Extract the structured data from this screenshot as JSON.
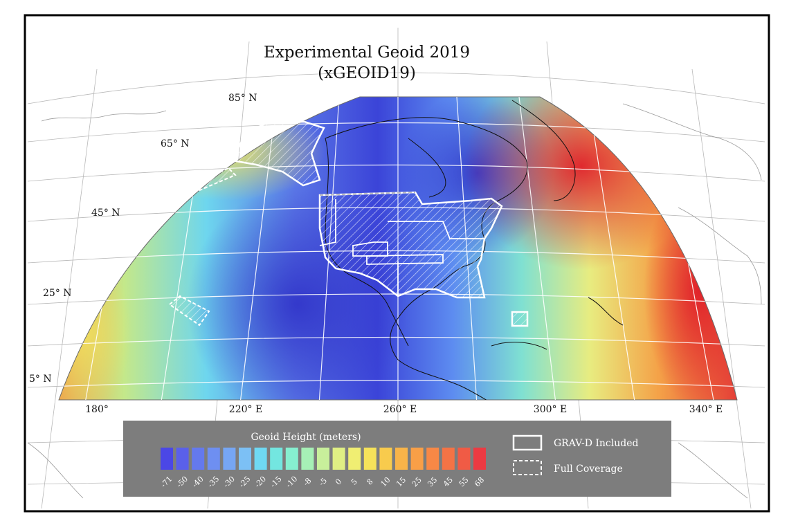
{
  "title": {
    "line1": "Experimental Geoid 2019",
    "line2": "(xGEOID19)"
  },
  "latitude_labels": [
    "85° N",
    "65° N",
    "45° N",
    "25° N",
    "5° N"
  ],
  "longitude_labels": [
    "180°",
    "220° E",
    "260° E",
    "300° E",
    "340° E"
  ],
  "legend": {
    "title": "Geoid Height (meters)",
    "values": [
      "-71",
      "-50",
      "-40",
      "-35",
      "-30",
      "-25",
      "-20",
      "-15",
      "-10",
      "-8",
      "-5",
      "0",
      "5",
      "8",
      "10",
      "15",
      "25",
      "35",
      "45",
      "55",
      "68"
    ],
    "colors": [
      "#4b47e6",
      "#5a60ea",
      "#6479ee",
      "#6e8ff1",
      "#76a6f4",
      "#7cc0f5",
      "#6fd9f3",
      "#73e6e0",
      "#86efd0",
      "#a6f0b6",
      "#c8ef9b",
      "#e0ef84",
      "#f0ee72",
      "#f6e25a",
      "#f8cb4d",
      "#f8b449",
      "#f89f47",
      "#f78846",
      "#f47345",
      "#f05b45",
      "#ec3a42"
    ],
    "key_items": [
      {
        "label": "GRAV-D Included",
        "style": "solid"
      },
      {
        "label": "Full Coverage",
        "style": "dashed"
      }
    ]
  },
  "colors": {
    "ocean_deep_low": "#3a3fd8",
    "high": "#e02b2b",
    "panel_bg": "#7d7d7d",
    "frame": "#000000"
  }
}
